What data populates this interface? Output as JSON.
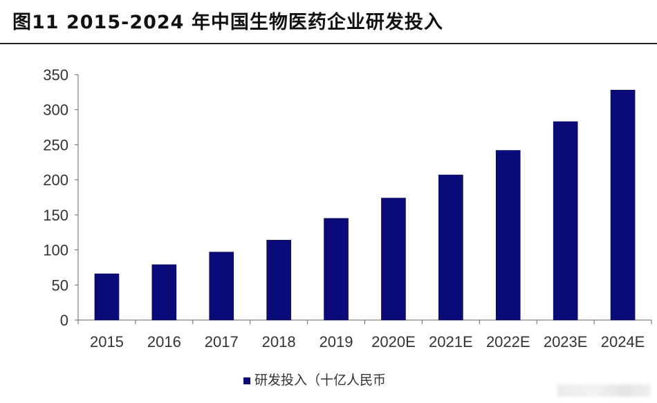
{
  "header": {
    "title": "图11 2015-2024 年中国生物医药企业研发投入"
  },
  "colors": {
    "bar": "#0a0a78",
    "axis": "#666666",
    "text": "#333333"
  },
  "chart_data": {
    "type": "bar",
    "categories": [
      "2015",
      "2016",
      "2017",
      "2018",
      "2019",
      "2020E",
      "2021E",
      "2022E",
      "2023E",
      "2024E"
    ],
    "series": [
      {
        "name": "研发投入（十亿人民币",
        "values": [
          66,
          79,
          97,
          114,
          145,
          174,
          207,
          242,
          283,
          328
        ]
      }
    ],
    "ylim": [
      0,
      350
    ],
    "yticks": [
      0,
      50,
      100,
      150,
      200,
      250,
      300,
      350
    ],
    "grid": false,
    "legend_position": "bottom-center"
  }
}
